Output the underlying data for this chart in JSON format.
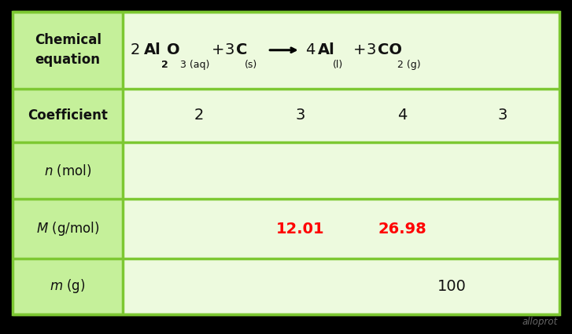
{
  "bg_color": "#000000",
  "table_bg_light": "#edfade",
  "header_col_bg": "#c5f09a",
  "border_color": "#7dc832",
  "text_color_black": "#111111",
  "text_color_red": "#ff0000",
  "text_color_watermark": "#666666",
  "watermark": "alloprot",
  "col_dividers": [
    0.022,
    0.215,
    0.978
  ],
  "data_col_centers": [
    0.348,
    0.525,
    0.703,
    0.878
  ],
  "row_dividers": [
    0.965,
    0.735,
    0.575,
    0.405,
    0.225,
    0.06
  ],
  "border_lw": 2.5,
  "coefficients": [
    "2",
    "3",
    "4",
    "3"
  ],
  "M_col2": "12.01",
  "M_col3": "26.98",
  "m_value": "100"
}
